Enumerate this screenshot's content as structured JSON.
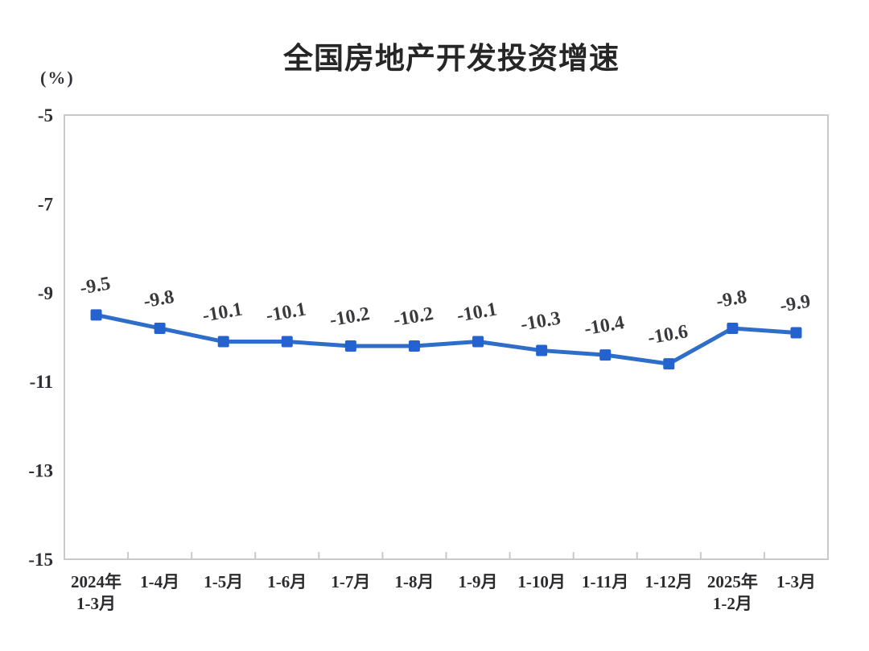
{
  "header": {
    "title": "全国房地产开发投资增速",
    "unit_label": "(%)"
  },
  "chart_data": {
    "type": "line",
    "title": "全国房地产开发投资增速",
    "unit": "%",
    "categories": [
      "2024年1-3月",
      "1-4月",
      "1-5月",
      "1-6月",
      "1-7月",
      "1-8月",
      "1-9月",
      "1-10月",
      "1-11月",
      "1-12月",
      "2025年1-2月",
      "1-3月"
    ],
    "category_labels": [
      {
        "line1": "2024年",
        "line2": "1-3月"
      },
      {
        "line1": "1-4月"
      },
      {
        "line1": "1-5月"
      },
      {
        "line1": "1-6月"
      },
      {
        "line1": "1-7月"
      },
      {
        "line1": "1-8月"
      },
      {
        "line1": "1-9月"
      },
      {
        "line1": "1-10月"
      },
      {
        "line1": "1-11月"
      },
      {
        "line1": "1-12月"
      },
      {
        "line1": "2025年",
        "line2": "1-2月"
      },
      {
        "line1": "1-3月"
      }
    ],
    "series": [
      {
        "name": "全国房地产开发投资增速",
        "values": [
          -9.5,
          -9.8,
          -10.1,
          -10.1,
          -10.2,
          -10.2,
          -10.1,
          -10.3,
          -10.4,
          -10.6,
          -9.8,
          -9.9
        ]
      }
    ],
    "data_labels": [
      "-9.5",
      "-9.8",
      "-10.1",
      "-10.1",
      "-10.2",
      "-10.2",
      "-10.1",
      "-10.3",
      "-10.4",
      "-10.6",
      "-9.8",
      "-9.9"
    ],
    "xlabel": "",
    "ylabel": "(%)",
    "ylim": [
      -15,
      -5
    ],
    "y_ticks": [
      -5,
      -7,
      -9,
      -11,
      -13,
      -15
    ],
    "grid": false,
    "legend_position": "none",
    "marker_shape": "square",
    "colors": {
      "line": "#2E6EC8",
      "marker": "#2463CF",
      "plot_border": "#C9C9C9",
      "axis_text": "#2E2E35",
      "data_label_text": "#3A3A3E",
      "title_text": "#262626",
      "background": "#FFFFFF"
    }
  }
}
